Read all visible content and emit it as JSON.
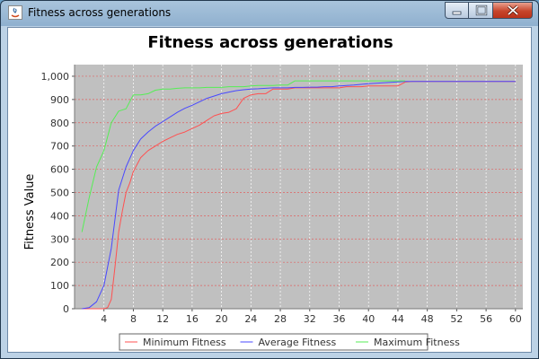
{
  "window": {
    "title": "Fitness across generations",
    "controls": {
      "minimize": "minimize-icon",
      "maximize": "maximize-icon",
      "close": "close-icon"
    }
  },
  "colors": {
    "plot_bg": "#c0c0c0",
    "grid": "#ffffff",
    "series": [
      "#ff5050",
      "#4848ff",
      "#55ee55"
    ]
  },
  "chart_data": {
    "type": "line",
    "title": "Fitness across generations",
    "xlabel": "",
    "ylabel": "Fitness Value",
    "xlim": [
      0,
      61
    ],
    "ylim": [
      0,
      1050
    ],
    "xticks": [
      4,
      8,
      12,
      16,
      20,
      24,
      28,
      32,
      36,
      40,
      44,
      48,
      52,
      56,
      60
    ],
    "yticks": [
      0,
      100,
      200,
      300,
      400,
      500,
      600,
      700,
      800,
      900,
      1000
    ],
    "grid": true,
    "legend_position": "bottom",
    "series": [
      {
        "name": "Minimum Fitness",
        "color": "#ff5050",
        "x": [
          1,
          2,
          3,
          3.5,
          4,
          4.5,
          5,
          5.5,
          6,
          6.5,
          7,
          7.5,
          8,
          9,
          10,
          11,
          12,
          13,
          14,
          15,
          16,
          17,
          18,
          19,
          20,
          21,
          22,
          23,
          24,
          25,
          26,
          27,
          28,
          29,
          30,
          31,
          32,
          33,
          34,
          35,
          36,
          37,
          38,
          39,
          40,
          41,
          42,
          43,
          44,
          45,
          46,
          47,
          48,
          50,
          52,
          54,
          56,
          58,
          60
        ],
        "y": [
          0,
          0,
          0,
          0,
          0,
          5,
          40,
          180,
          330,
          420,
          500,
          540,
          590,
          650,
          680,
          700,
          720,
          735,
          750,
          760,
          775,
          790,
          810,
          830,
          840,
          845,
          860,
          905,
          920,
          925,
          925,
          945,
          945,
          945,
          950,
          950,
          950,
          950,
          950,
          950,
          950,
          955,
          955,
          955,
          958,
          958,
          958,
          958,
          958,
          975,
          978,
          978,
          978,
          978,
          978,
          978,
          978,
          978,
          978
        ]
      },
      {
        "name": "Average Fitness",
        "color": "#4848ff",
        "x": [
          1,
          2,
          3,
          4,
          5,
          6,
          7,
          8,
          9,
          10,
          11,
          12,
          13,
          14,
          15,
          16,
          17,
          18,
          19,
          20,
          21,
          22,
          23,
          24,
          25,
          26,
          27,
          28,
          29,
          30,
          31,
          32,
          33,
          34,
          35,
          36,
          37,
          38,
          39,
          40,
          41,
          42,
          43,
          44,
          45,
          46,
          48,
          50,
          52,
          54,
          56,
          58,
          60
        ],
        "y": [
          0,
          5,
          30,
          100,
          260,
          510,
          610,
          680,
          730,
          760,
          785,
          805,
          825,
          845,
          862,
          875,
          890,
          905,
          915,
          925,
          932,
          938,
          942,
          945,
          946,
          948,
          950,
          950,
          950,
          952,
          952,
          953,
          953,
          955,
          955,
          958,
          960,
          962,
          965,
          968,
          970,
          972,
          974,
          976,
          978,
          978,
          978,
          978,
          978,
          978,
          978,
          978,
          978
        ]
      },
      {
        "name": "Maximum Fitness",
        "color": "#55ee55",
        "x": [
          1,
          2,
          3,
          4,
          5,
          6,
          7,
          8,
          9,
          10,
          11,
          12,
          13,
          14,
          15,
          16,
          17,
          18,
          19,
          20,
          21,
          22,
          23,
          24,
          25,
          26,
          27,
          28,
          29,
          30,
          31,
          32,
          33,
          34,
          35,
          36,
          37,
          38,
          39,
          40,
          41,
          42,
          43,
          44,
          45
        ],
        "y": [
          330,
          480,
          610,
          680,
          800,
          850,
          860,
          920,
          920,
          925,
          940,
          945,
          945,
          948,
          950,
          950,
          950,
          952,
          952,
          952,
          955,
          955,
          955,
          958,
          960,
          960,
          960,
          962,
          962,
          980,
          980,
          980,
          980,
          980,
          980,
          980,
          980,
          980,
          980,
          980,
          980,
          980,
          980,
          980,
          980
        ]
      }
    ]
  }
}
